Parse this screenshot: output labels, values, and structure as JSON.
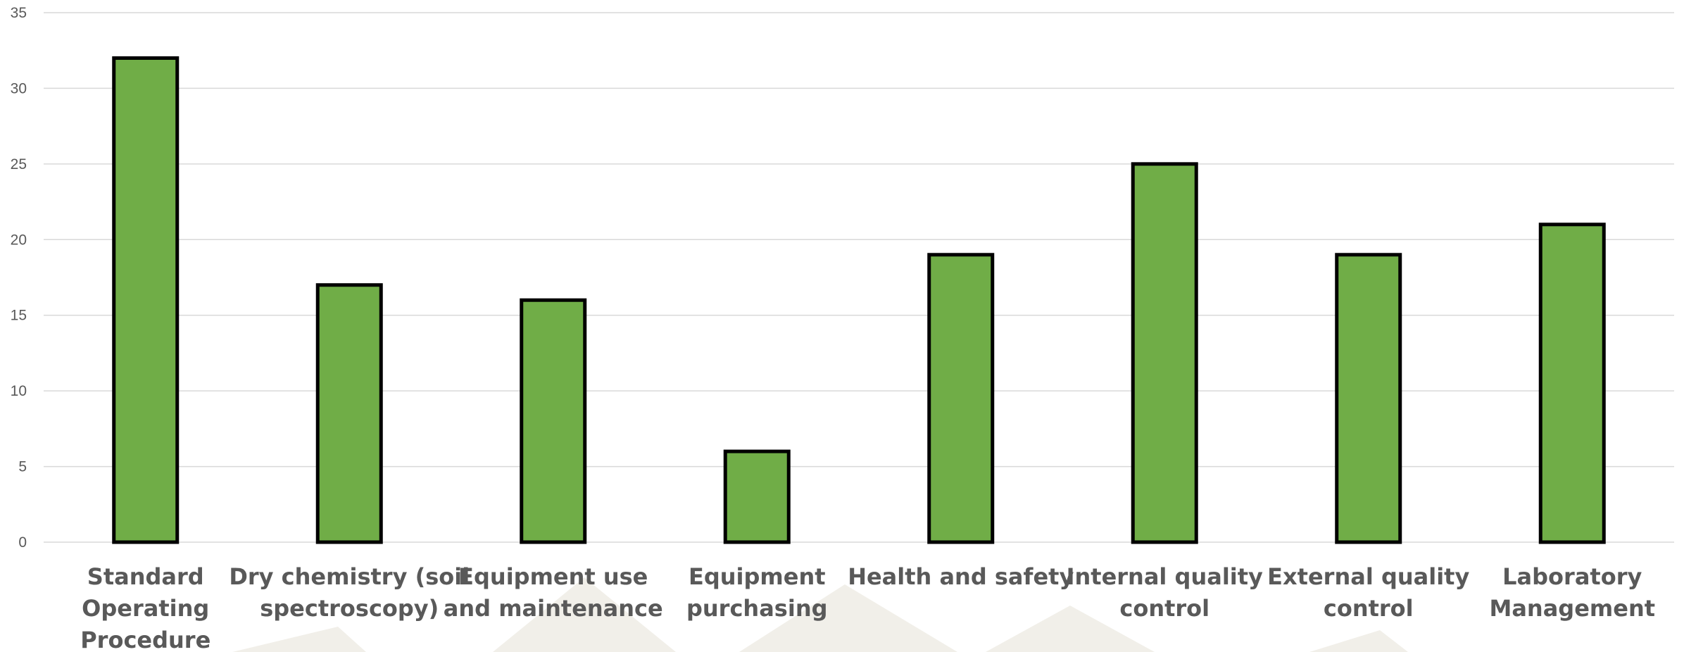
{
  "chart_data": {
    "type": "bar",
    "categories": [
      "Standard Operating Procedure",
      "Dry chemistry (soil spectroscopy)",
      "Equipment use and maintenance",
      "Equipment purchasing",
      "Health and safety",
      "Internal quality control",
      "External quality control",
      "Laboratory Management"
    ],
    "category_label_lines": [
      [
        "Standard",
        "Operating",
        "Procedure"
      ],
      [
        "Dry chemistry (soil",
        "spectroscopy)"
      ],
      [
        "Equipment use",
        "and maintenance"
      ],
      [
        "Equipment",
        "purchasing"
      ],
      [
        "Health and safety"
      ],
      [
        "Internal quality",
        "control"
      ],
      [
        "External quality",
        "control"
      ],
      [
        "Laboratory",
        "Management"
      ]
    ],
    "values": [
      32,
      17,
      16,
      6,
      19,
      25,
      19,
      21
    ],
    "title": "",
    "xlabel": "",
    "ylabel": "",
    "ylim": [
      0,
      35
    ],
    "yticks": [
      0,
      5,
      10,
      15,
      20,
      25,
      30,
      35
    ],
    "grid": true,
    "legend": "none",
    "bar_color": "#70ad47",
    "bar_edge_color": "#000000",
    "grid_color": "#d9d9d9",
    "tick_label_color": "#595959"
  }
}
